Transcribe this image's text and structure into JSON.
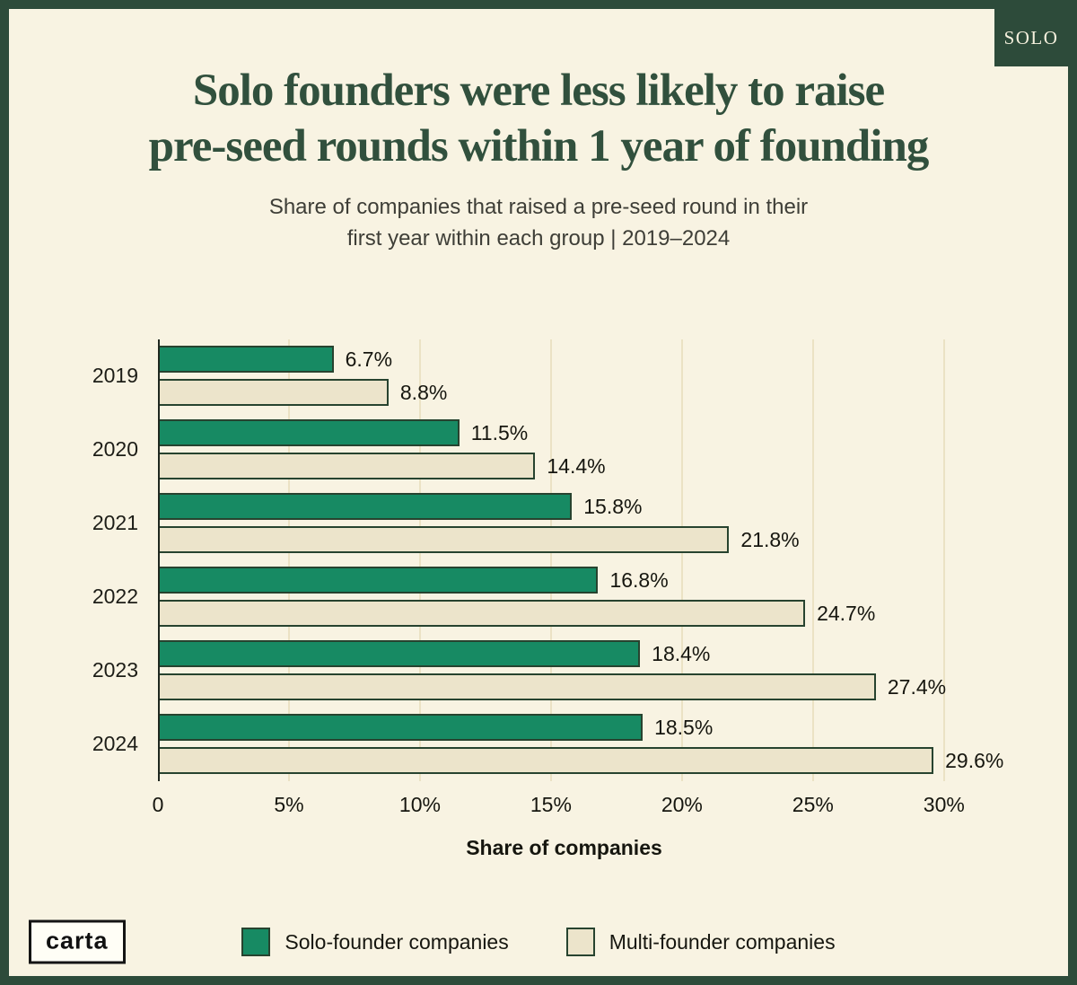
{
  "badge": "SOLO",
  "title": {
    "line1": "Solo founders were less likely to raise",
    "line2": "pre-seed rounds within 1 year of founding"
  },
  "subtitle": {
    "line1": "Share of companies that raised a pre-seed round in their",
    "line2": "first year within each group | 2019–2024"
  },
  "logo_text": "carta",
  "colors": {
    "frame_green": "#2d4b3a",
    "title_green": "#31503d",
    "background_cream": "#f8f3e2",
    "solo_bar": "#178a63",
    "multi_bar": "#ece4cb",
    "bar_border": "#27432f",
    "gridline": "#ebe2c4"
  },
  "chart_data": {
    "type": "bar",
    "orientation": "horizontal",
    "title": "Solo founders were less likely to raise pre-seed rounds within 1 year of founding",
    "subtitle": "Share of companies that raised a pre-seed round in their first year within each group | 2019–2024",
    "categories": [
      "2019",
      "2020",
      "2021",
      "2022",
      "2023",
      "2024"
    ],
    "series": [
      {
        "key": "solo",
        "name": "Solo-founder companies",
        "color": "#178a63",
        "values": [
          6.7,
          11.5,
          15.8,
          16.8,
          18.4,
          18.5
        ],
        "labels": [
          "6.7%",
          "11.5%",
          "15.8%",
          "16.8%",
          "18.4%",
          "18.5%"
        ]
      },
      {
        "key": "multi",
        "name": "Multi-founder companies",
        "color": "#ece4cb",
        "values": [
          8.8,
          14.4,
          21.8,
          24.7,
          27.4,
          29.6
        ],
        "labels": [
          "8.8%",
          "14.4%",
          "21.8%",
          "24.7%",
          "27.4%",
          "29.6%"
        ]
      }
    ],
    "x_ticks": [
      "0",
      "5%",
      "10%",
      "15%",
      "20%",
      "25%",
      "30%"
    ],
    "x_tick_values": [
      0,
      5,
      10,
      15,
      20,
      25,
      30
    ],
    "x_max": 31,
    "xlabel": "Share of companies",
    "grid": true,
    "legend_position": "bottom"
  }
}
